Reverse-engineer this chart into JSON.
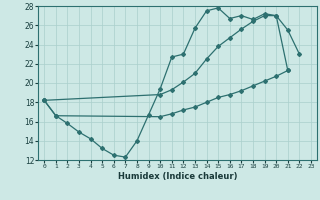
{
  "xlabel": "Humidex (Indice chaleur)",
  "xlim": [
    -0.5,
    23.5
  ],
  "ylim": [
    12,
    28
  ],
  "xticks": [
    0,
    1,
    2,
    3,
    4,
    5,
    6,
    7,
    8,
    9,
    10,
    11,
    12,
    13,
    14,
    15,
    16,
    17,
    18,
    19,
    20,
    21,
    22,
    23
  ],
  "yticks": [
    12,
    14,
    16,
    18,
    20,
    22,
    24,
    26,
    28
  ],
  "bg_color": "#cde8e5",
  "grid_color": "#aacfcc",
  "line_color": "#2d7070",
  "line1_y": [
    18.2,
    16.6,
    15.8,
    14.9,
    14.2,
    13.2,
    12.5,
    12.3,
    14.0,
    16.7,
    19.4,
    22.7,
    23.0,
    25.7,
    27.5,
    27.8,
    26.7,
    27.0,
    26.6,
    27.2,
    27.0,
    25.5,
    23.0,
    null
  ],
  "line2_y": [
    18.2,
    null,
    null,
    null,
    null,
    null,
    null,
    null,
    null,
    null,
    18.8,
    19.3,
    20.1,
    21.0,
    22.5,
    23.8,
    24.7,
    25.6,
    26.4,
    27.0,
    27.0,
    21.3,
    null,
    null
  ],
  "line3_y": [
    18.2,
    16.6,
    null,
    null,
    null,
    null,
    null,
    null,
    null,
    null,
    16.5,
    16.8,
    17.2,
    17.5,
    18.0,
    18.5,
    18.8,
    19.2,
    19.7,
    20.2,
    20.7,
    21.3,
    null,
    null
  ]
}
